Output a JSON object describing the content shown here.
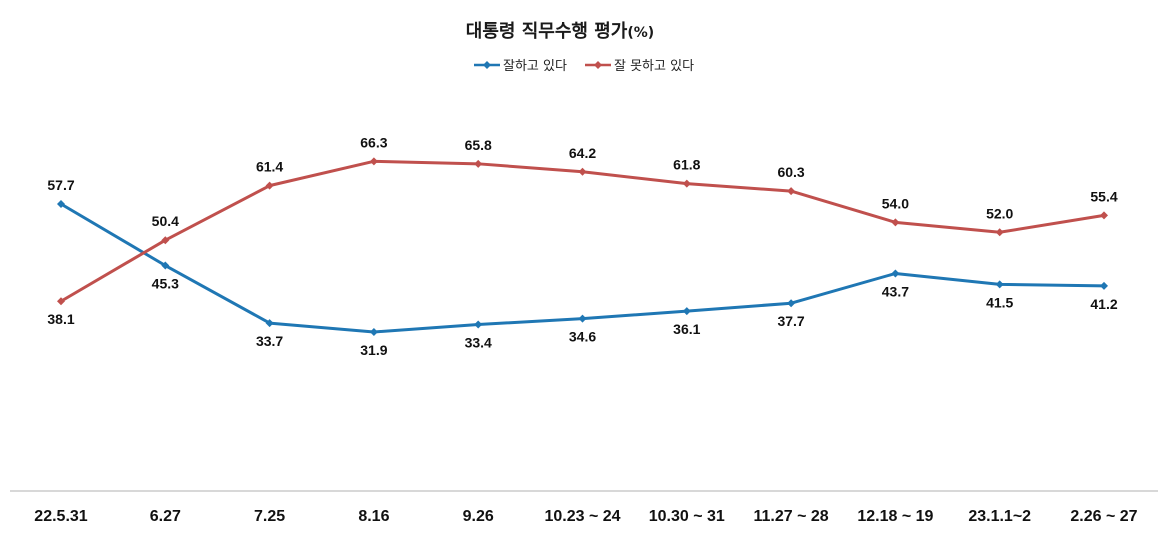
{
  "chart_data": {
    "type": "line",
    "title": "대통령 직무수행 평가",
    "title_suffix": "(%)",
    "categories": [
      "22.5.31",
      "6.27",
      "7.25",
      "8.16",
      "9.26",
      "10.23 ~ 24",
      "10.30 ~ 31",
      "11.27 ~ 28",
      "12.18 ~ 19",
      "23.1.1~2",
      "2.26 ~ 27"
    ],
    "series": [
      {
        "name": "잘하고 있다",
        "color": "#1f77b4",
        "values": [
          57.7,
          45.3,
          33.7,
          31.9,
          33.4,
          34.6,
          36.1,
          37.7,
          43.7,
          41.5,
          41.2
        ],
        "labels": [
          "57.7",
          "45.3",
          "33.7",
          "31.9",
          "33.4",
          "34.6",
          "36.1",
          "37.7",
          "43.7",
          "41.5",
          "41.2"
        ]
      },
      {
        "name": "잘 못하고 있다",
        "color": "#c0504d",
        "values": [
          38.1,
          50.4,
          61.4,
          66.3,
          65.8,
          64.2,
          61.8,
          60.3,
          54.0,
          52.0,
          55.4
        ],
        "labels": [
          "38.1",
          "50.4",
          "61.4",
          "66.3",
          "65.8",
          "64.2",
          "61.8",
          "60.3",
          "54.0",
          "52.0",
          "55.4"
        ]
      }
    ],
    "legend_position": "top",
    "grid": false,
    "ylim": [
      0,
      80
    ]
  }
}
